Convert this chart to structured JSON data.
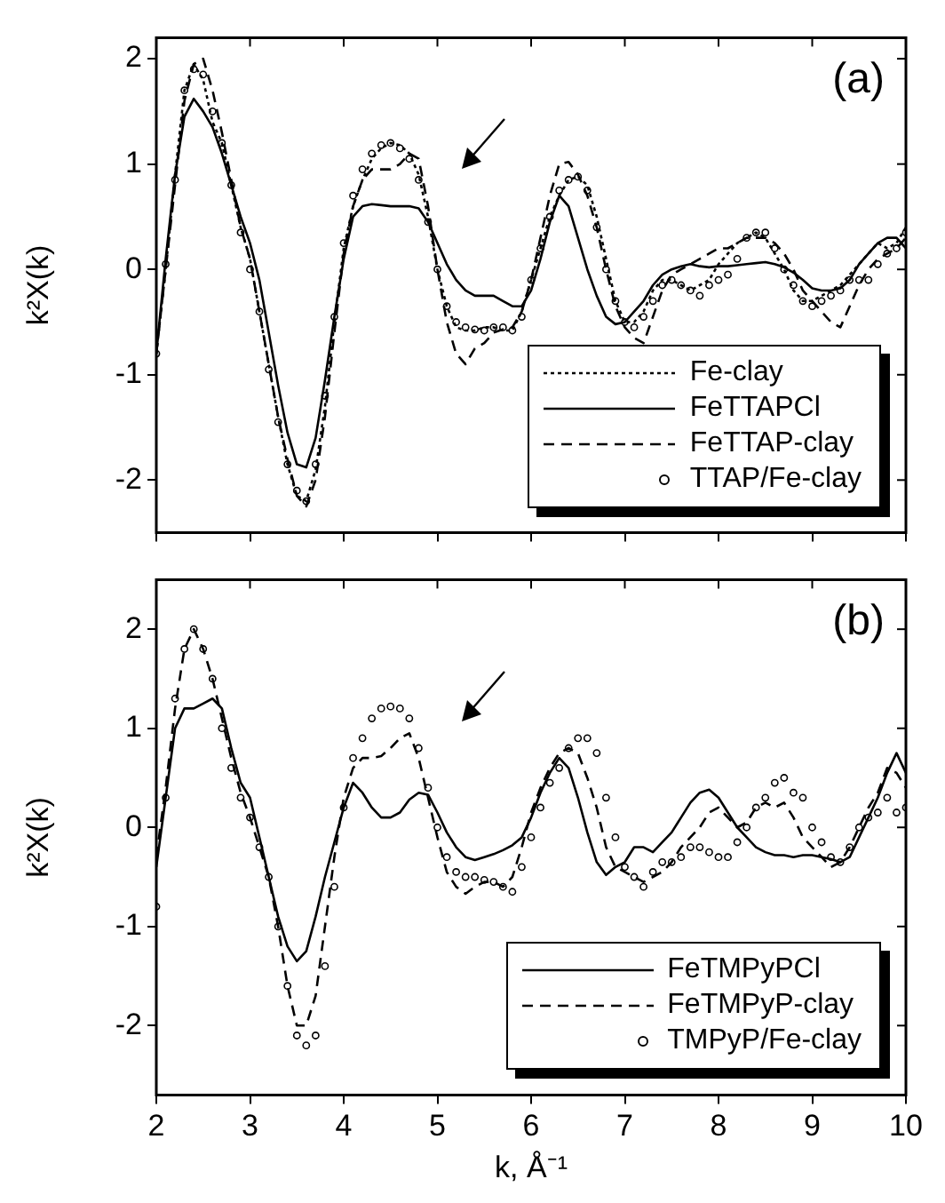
{
  "chart_data": [
    {
      "type": "line",
      "annotations": [
        "(a)"
      ],
      "ylabel": "k²X(k)",
      "xlim": [
        2,
        10
      ],
      "xticks": [
        2,
        3,
        4,
        5,
        6,
        7,
        8,
        9,
        10
      ],
      "ylim": [
        -2.5,
        2.2
      ],
      "yticks": [
        -2,
        -1,
        0,
        1,
        2
      ],
      "tick_labels": "y",
      "legend": "bottom right",
      "grid": false,
      "x": [
        2,
        2.1,
        2.2,
        2.3,
        2.4,
        2.5,
        2.6,
        2.7,
        2.8,
        2.9,
        3,
        3.1,
        3.2,
        3.3,
        3.4,
        3.5,
        3.6,
        3.7,
        3.8,
        3.9,
        4,
        4.1,
        4.2,
        4.3,
        4.4,
        4.5,
        4.6,
        4.7,
        4.8,
        4.9,
        5,
        5.1,
        5.2,
        5.3,
        5.4,
        5.5,
        5.6,
        5.7,
        5.8,
        5.9,
        6,
        6.1,
        6.2,
        6.3,
        6.4,
        6.5,
        6.6,
        6.7,
        6.8,
        6.9,
        7,
        7.1,
        7.2,
        7.3,
        7.4,
        7.5,
        7.6,
        7.7,
        7.8,
        7.9,
        8,
        8.1,
        8.2,
        8.3,
        8.4,
        8.5,
        8.6,
        8.7,
        8.8,
        8.9,
        9,
        9.1,
        9.2,
        9.3,
        9.4,
        9.5,
        9.6,
        9.7,
        9.8,
        9.9,
        10
      ],
      "series": [
        {
          "name": "Fe-clay",
          "type": "line",
          "line_style": "dotted",
          "color": "#000000",
          "values": [
            -0.8,
            0,
            0.9,
            1.7,
            1.95,
            1.8,
            1.4,
            1.2,
            0.8,
            0.4,
            0.1,
            -0.4,
            -0.9,
            -1.4,
            -1.85,
            -2.15,
            -2.2,
            -1.9,
            -1.3,
            -0.5,
            0.2,
            0.6,
            0.85,
            1.05,
            1.15,
            1.2,
            1.18,
            1.1,
            0.9,
            0.5,
            0,
            -0.35,
            -0.55,
            -0.58,
            -0.58,
            -0.55,
            -0.55,
            -0.58,
            -0.58,
            -0.4,
            -0.1,
            0.2,
            0.5,
            0.7,
            0.85,
            0.88,
            0.8,
            0.5,
            0.1,
            -0.3,
            -0.5,
            -0.5,
            -0.4,
            -0.2,
            -0.1,
            -0.1,
            -0.15,
            -0.2,
            -0.15,
            -0.1,
            0.05,
            0.15,
            0.25,
            0.3,
            0.35,
            0.3,
            0.15,
            0,
            -0.2,
            -0.3,
            -0.3,
            -0.25,
            -0.2,
            -0.15,
            -0.05,
            0.05,
            0.15,
            0.25,
            0.2,
            0.25,
            0.4
          ]
        },
        {
          "name": "FeTTAPCl",
          "type": "line",
          "line_style": "solid",
          "color": "#000000",
          "values": [
            -0.8,
            0.1,
            0.9,
            1.45,
            1.62,
            1.5,
            1.35,
            1.1,
            0.8,
            0.5,
            0.25,
            -0.1,
            -0.6,
            -1.1,
            -1.55,
            -1.85,
            -1.88,
            -1.6,
            -1.05,
            -0.45,
            0.1,
            0.5,
            0.6,
            0.62,
            0.61,
            0.6,
            0.6,
            0.6,
            0.58,
            0.45,
            0.25,
            0.05,
            -0.1,
            -0.2,
            -0.25,
            -0.25,
            -0.25,
            -0.3,
            -0.35,
            -0.35,
            -0.2,
            0.1,
            0.45,
            0.7,
            0.6,
            0.3,
            0,
            -0.25,
            -0.45,
            -0.52,
            -0.5,
            -0.4,
            -0.3,
            -0.15,
            -0.05,
            0,
            0.03,
            0.05,
            0.03,
            0.02,
            0.03,
            0.03,
            0.04,
            0.05,
            0.06,
            0.07,
            0.05,
            0.02,
            -0.03,
            -0.1,
            -0.18,
            -0.2,
            -0.2,
            -0.18,
            -0.1,
            0.05,
            0.15,
            0.25,
            0.3,
            0.3,
            0.2
          ]
        },
        {
          "name": "FeTTAP-clay",
          "type": "line",
          "line_style": "dashed",
          "color": "#000000",
          "values": [
            -0.8,
            0,
            0.8,
            1.6,
            1.95,
            2,
            1.7,
            1.3,
            0.85,
            0.4,
            0.1,
            -0.4,
            -0.9,
            -1.4,
            -1.8,
            -2.15,
            -2.25,
            -2,
            -1.4,
            -0.6,
            0.15,
            0.6,
            0.85,
            0.95,
            0.95,
            0.95,
            1,
            1.1,
            1.05,
            0.6,
            0,
            -0.5,
            -0.8,
            -0.9,
            -0.75,
            -0.7,
            -0.6,
            -0.57,
            -0.55,
            -0.4,
            -0.1,
            0.3,
            0.7,
            1,
            1.02,
            0.9,
            0.7,
            0.4,
            0,
            -0.35,
            -0.55,
            -0.65,
            -0.7,
            -0.45,
            -0.2,
            -0.05,
            0,
            0.05,
            0.1,
            0.15,
            0.2,
            0.2,
            0.25,
            0.3,
            0.3,
            0.3,
            0.25,
            0.15,
            0,
            -0.2,
            -0.3,
            -0.4,
            -0.5,
            -0.55,
            -0.35,
            -0.15,
            0,
            0.1,
            0.15,
            0.2,
            0.3
          ]
        },
        {
          "name": "TTAP/Fe-clay",
          "type": "scatter",
          "marker": "circle",
          "color": "#000000",
          "values": [
            -0.8,
            0.05,
            0.85,
            1.7,
            1.9,
            1.85,
            1.5,
            1.2,
            0.8,
            0.35,
            0,
            -0.4,
            -0.95,
            -1.45,
            -1.85,
            -2.1,
            -2.2,
            -1.85,
            -1.2,
            -0.45,
            0.25,
            0.7,
            0.95,
            1.1,
            1.18,
            1.2,
            1.15,
            1.05,
            0.85,
            0.45,
            0,
            -0.35,
            -0.5,
            -0.55,
            -0.57,
            -0.58,
            -0.55,
            -0.55,
            -0.58,
            -0.45,
            -0.1,
            0.2,
            0.5,
            0.75,
            0.85,
            0.88,
            0.75,
            0.4,
            0,
            -0.3,
            -0.5,
            -0.55,
            -0.45,
            -0.3,
            -0.15,
            -0.1,
            -0.15,
            -0.2,
            -0.25,
            -0.15,
            -0.1,
            -0.05,
            0.1,
            0.3,
            0.35,
            0.35,
            0.2,
            0,
            -0.15,
            -0.3,
            -0.35,
            -0.3,
            -0.25,
            -0.2,
            -0.1,
            -0.1,
            -0.1,
            0.05,
            0.15,
            0.2,
            0.35
          ]
        }
      ]
    },
    {
      "type": "line",
      "annotations": [
        "(b)"
      ],
      "ylabel": "k²X(k)",
      "xlabel": "k, Å⁻¹",
      "xlim": [
        2,
        10
      ],
      "xticks": [
        2,
        3,
        4,
        5,
        6,
        7,
        8,
        9,
        10
      ],
      "ylim": [
        -2.7,
        2.5
      ],
      "yticks": [
        -2,
        -1,
        0,
        1,
        2
      ],
      "legend": "bottom right",
      "grid": false,
      "x": [
        2,
        2.1,
        2.2,
        2.3,
        2.4,
        2.5,
        2.6,
        2.7,
        2.8,
        2.9,
        3,
        3.1,
        3.2,
        3.3,
        3.4,
        3.5,
        3.6,
        3.7,
        3.8,
        3.9,
        4,
        4.1,
        4.2,
        4.3,
        4.4,
        4.5,
        4.6,
        4.7,
        4.8,
        4.9,
        5,
        5.1,
        5.2,
        5.3,
        5.4,
        5.5,
        5.6,
        5.7,
        5.8,
        5.9,
        6,
        6.1,
        6.2,
        6.3,
        6.4,
        6.5,
        6.6,
        6.7,
        6.8,
        6.9,
        7,
        7.1,
        7.2,
        7.3,
        7.4,
        7.5,
        7.6,
        7.7,
        7.8,
        7.9,
        8,
        8.1,
        8.2,
        8.3,
        8.4,
        8.5,
        8.6,
        8.7,
        8.8,
        8.9,
        9,
        9.1,
        9.2,
        9.3,
        9.4,
        9.5,
        9.6,
        9.7,
        9.8,
        9.9,
        10
      ],
      "series": [
        {
          "name": "FeTMPyPCl",
          "type": "line",
          "line_style": "solid",
          "color": "#000000",
          "values": [
            -0.4,
            0.3,
            1,
            1.2,
            1.2,
            1.25,
            1.3,
            1.2,
            0.8,
            0.45,
            0.3,
            -0.1,
            -0.5,
            -0.9,
            -1.2,
            -1.35,
            -1.25,
            -0.9,
            -0.5,
            -0.15,
            0.2,
            0.45,
            0.35,
            0.2,
            0.1,
            0.1,
            0.15,
            0.28,
            0.35,
            0.33,
            0.15,
            -0.05,
            -0.2,
            -0.3,
            -0.33,
            -0.3,
            -0.27,
            -0.23,
            -0.18,
            -0.1,
            0.1,
            0.35,
            0.55,
            0.7,
            0.6,
            0.3,
            -0.05,
            -0.35,
            -0.48,
            -0.4,
            -0.35,
            -0.2,
            -0.2,
            -0.25,
            -0.15,
            -0.05,
            0.1,
            0.25,
            0.35,
            0.38,
            0.3,
            0.15,
            0,
            -0.1,
            -0.2,
            -0.25,
            -0.28,
            -0.28,
            -0.3,
            -0.28,
            -0.28,
            -0.3,
            -0.32,
            -0.35,
            -0.3,
            -0.1,
            0.1,
            0.3,
            0.55,
            0.75,
            0.55
          ]
        },
        {
          "name": "FeTMPyP-clay",
          "type": "line",
          "line_style": "dashed",
          "color": "#000000",
          "values": [
            -0.3,
            0.4,
            1.2,
            1.8,
            2,
            1.8,
            1.5,
            1.1,
            0.7,
            0.35,
            0.1,
            -0.2,
            -0.5,
            -1,
            -1.6,
            -2,
            -2,
            -1.7,
            -1,
            -0.3,
            0.3,
            0.6,
            0.7,
            0.7,
            0.72,
            0.8,
            0.9,
            0.95,
            0.7,
            0.3,
            -0.1,
            -0.45,
            -0.6,
            -0.67,
            -0.6,
            -0.55,
            -0.55,
            -0.6,
            -0.5,
            -0.2,
            0.15,
            0.4,
            0.6,
            0.75,
            0.8,
            0.75,
            0.5,
            0.2,
            -0.2,
            -0.4,
            -0.45,
            -0.5,
            -0.55,
            -0.5,
            -0.45,
            -0.35,
            -0.2,
            -0.1,
            0,
            0.15,
            0.2,
            0.1,
            0,
            0.05,
            0.2,
            0.25,
            0.2,
            0.25,
            0.1,
            -0.1,
            -0.2,
            -0.3,
            -0.4,
            -0.35,
            -0.2,
            0,
            0.2,
            0.35,
            0.6,
            0.55,
            0.4
          ]
        },
        {
          "name": "TMPyP/Fe-clay",
          "type": "scatter",
          "marker": "circle",
          "color": "#000000",
          "values": [
            -0.8,
            0.3,
            1.3,
            1.8,
            2,
            1.8,
            1.5,
            1,
            0.6,
            0.3,
            0.1,
            -0.2,
            -0.5,
            -1,
            -1.6,
            -2.1,
            -2.2,
            -2.1,
            -1.4,
            -0.6,
            0.2,
            0.7,
            0.9,
            1.1,
            1.2,
            1.22,
            1.2,
            1.1,
            0.8,
            0.4,
            0,
            -0.3,
            -0.45,
            -0.5,
            -0.5,
            -0.53,
            -0.55,
            -0.6,
            -0.65,
            -0.4,
            -0.1,
            0.2,
            0.45,
            0.6,
            0.8,
            0.9,
            0.9,
            0.75,
            0.3,
            -0.1,
            -0.4,
            -0.5,
            -0.6,
            -0.45,
            -0.35,
            -0.35,
            -0.3,
            -0.2,
            -0.2,
            -0.25,
            -0.3,
            -0.3,
            -0.15,
            0,
            0.2,
            0.3,
            0.45,
            0.5,
            0.35,
            0.3,
            0,
            -0.15,
            -0.3,
            -0.35,
            -0.2,
            0,
            0.1,
            0.15,
            0.3,
            0.15,
            0.2
          ]
        }
      ]
    }
  ]
}
